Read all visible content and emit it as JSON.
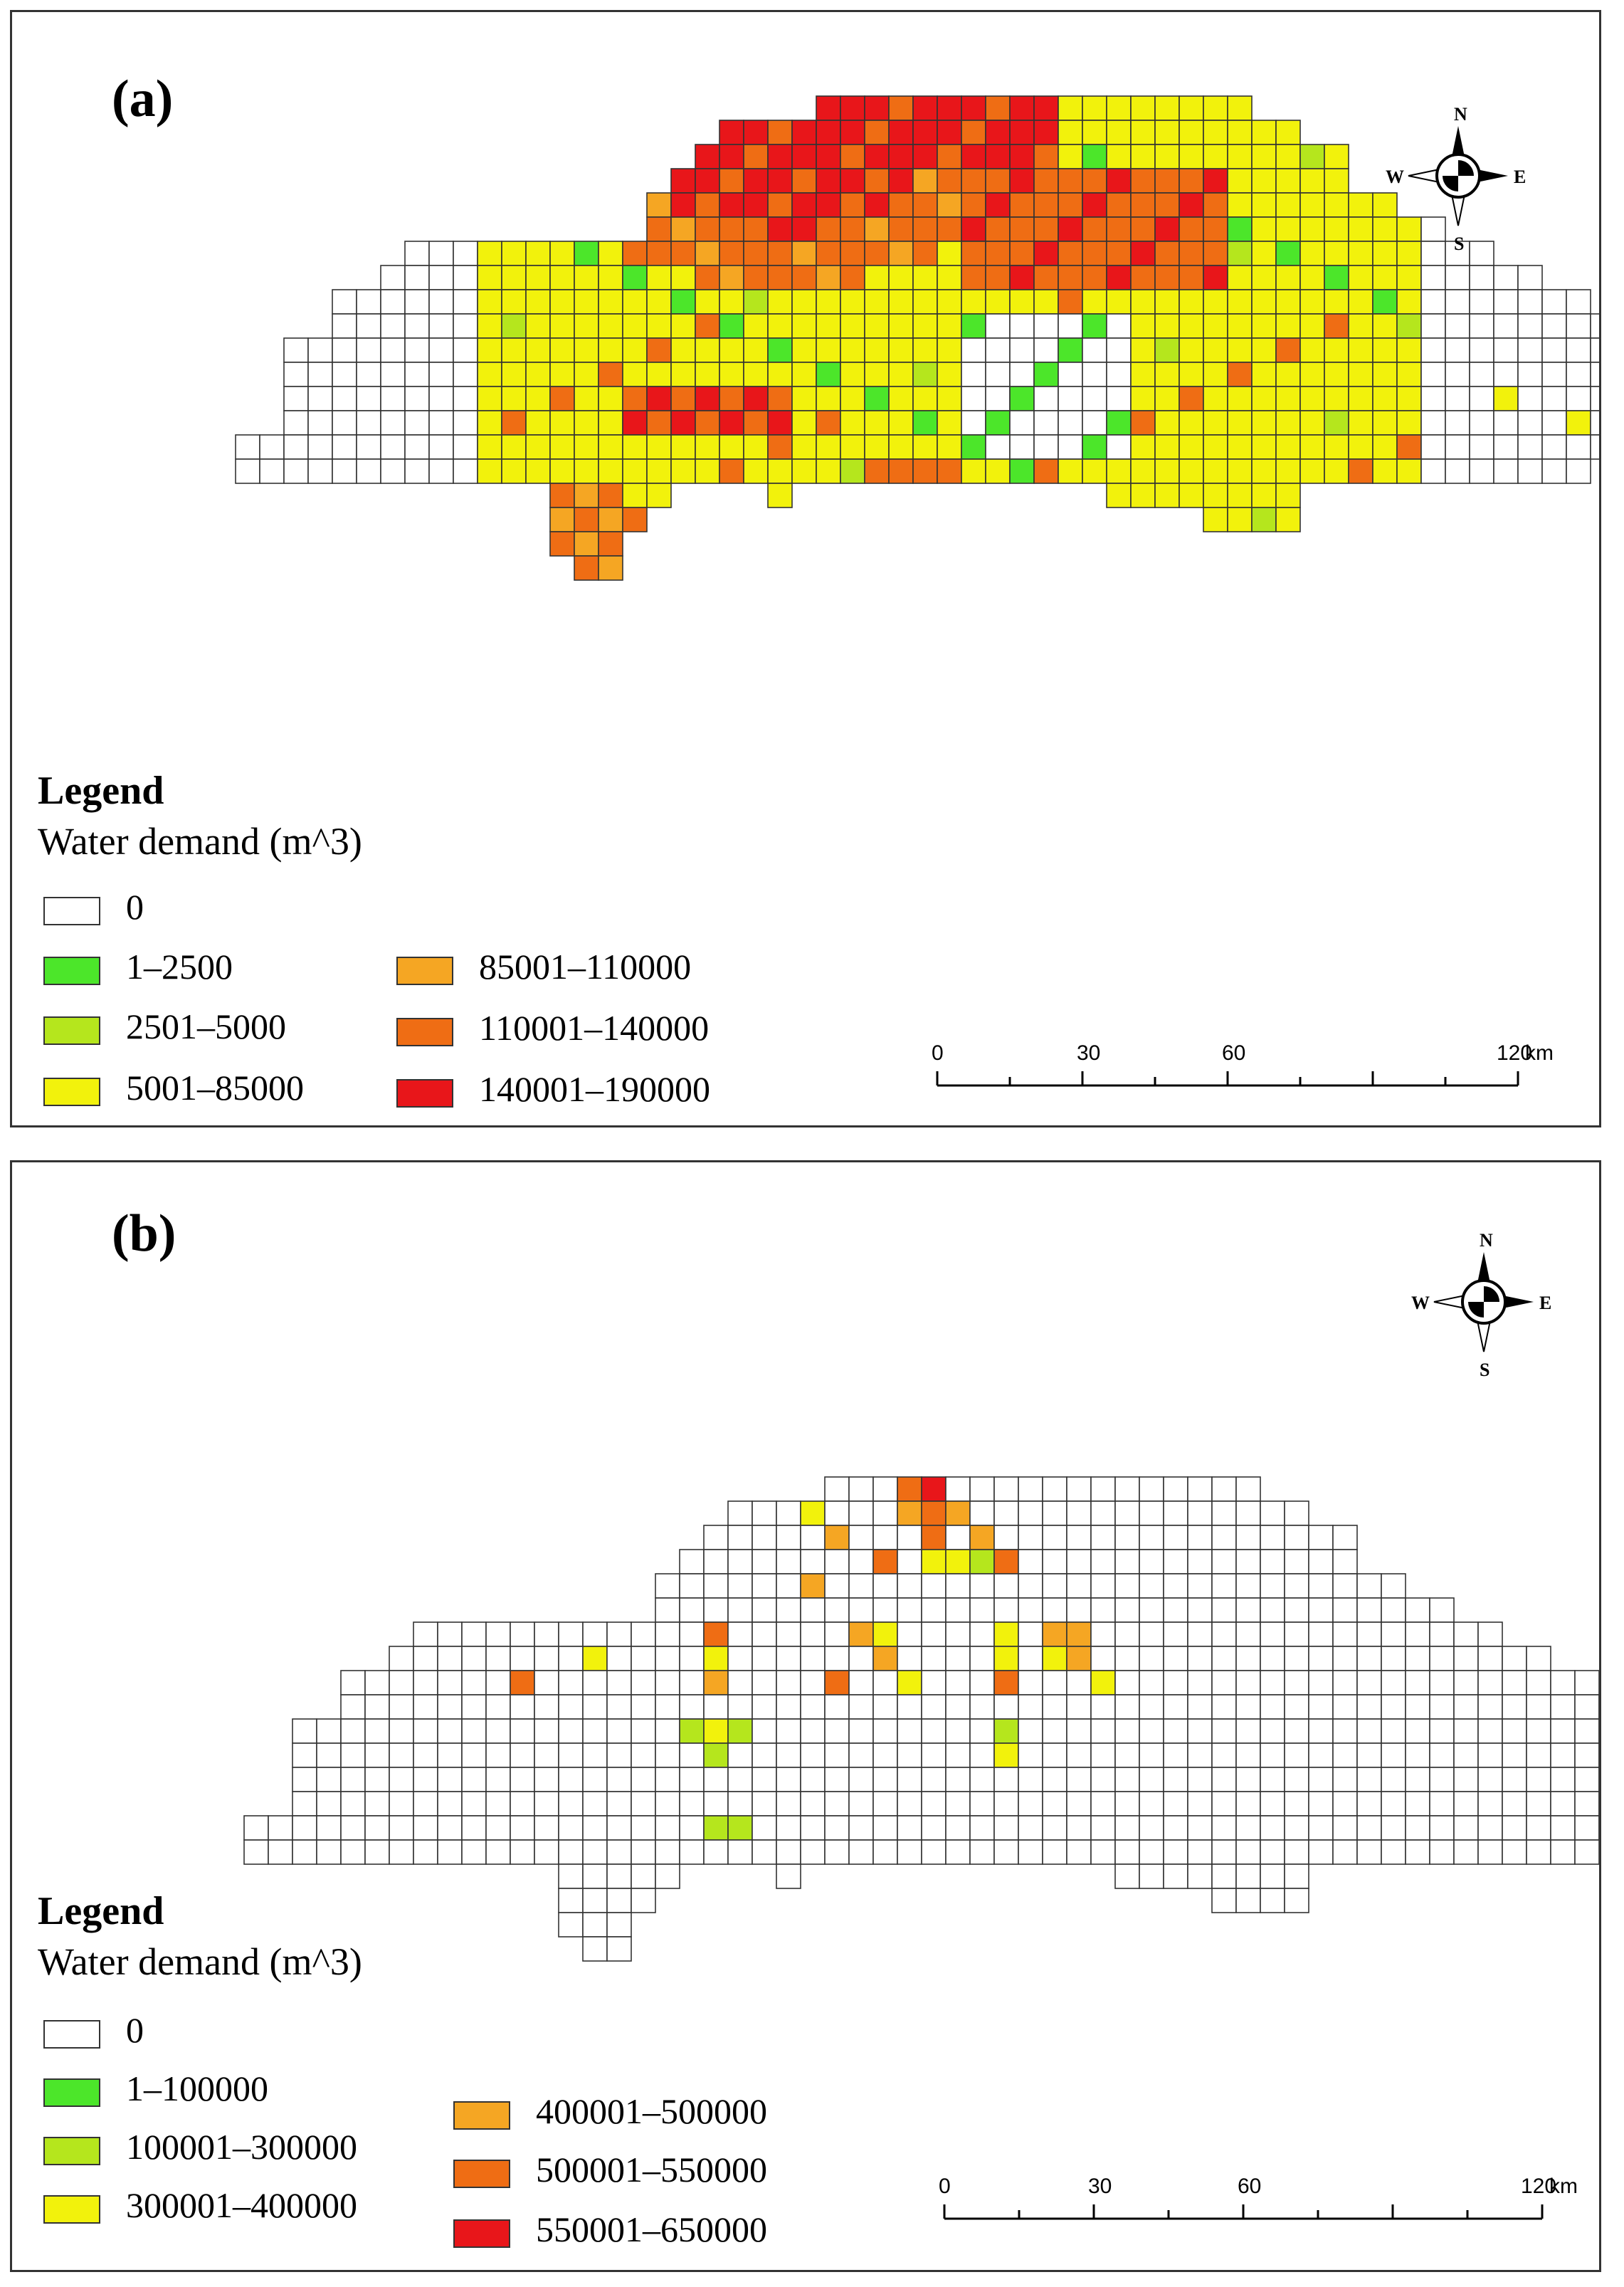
{
  "panels": [
    {
      "label": "(a)",
      "legend": {
        "title": "Legend",
        "subtitle": "Water demand (m^3)",
        "classes": [
          {
            "label": "0",
            "color": "#ffffff"
          },
          {
            "label": "1–2500",
            "color": "#4ce62a"
          },
          {
            "label": "2501–5000",
            "color": "#b5e61d"
          },
          {
            "label": "5001–85000",
            "color": "#f2f20c"
          },
          {
            "label": "85001–110000",
            "color": "#f5a623"
          },
          {
            "label": "110001–140000",
            "color": "#ef6d14"
          },
          {
            "label": "140001–190000",
            "color": "#e8161a"
          }
        ]
      },
      "compass": {
        "n": "N",
        "s": "S",
        "e": "E",
        "w": "W"
      },
      "scale": {
        "ticks": [
          "0",
          "30",
          "60",
          "120"
        ],
        "unit": "km"
      }
    },
    {
      "label": "(b)",
      "legend": {
        "title": "Legend",
        "subtitle": "Water demand (m^3)",
        "classes": [
          {
            "label": "0",
            "color": "#ffffff"
          },
          {
            "label": "1–100000",
            "color": "#4ce62a"
          },
          {
            "label": "100001–300000",
            "color": "#b5e61d"
          },
          {
            "label": "300001–400000",
            "color": "#f2f20c"
          },
          {
            "label": "400001–500000",
            "color": "#f5a623"
          },
          {
            "label": "500001–550000",
            "color": "#ef6d14"
          },
          {
            "label": "550001–650000",
            "color": "#e8161a"
          }
        ]
      },
      "compass": {
        "n": "N",
        "s": "S",
        "e": "E",
        "w": "W"
      },
      "scale": {
        "ticks": [
          "0",
          "30",
          "60",
          "120"
        ],
        "unit": "km"
      }
    }
  ]
}
